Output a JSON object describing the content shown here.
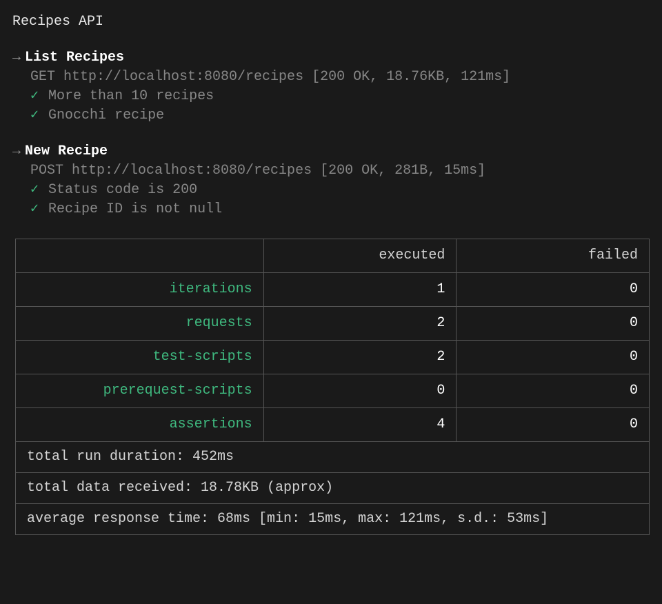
{
  "colors": {
    "background": "#1a1a1a",
    "text": "#d4d4d4",
    "bright_text": "#ffffff",
    "dim_text": "#868686",
    "green": "#3fb97f",
    "border": "#555555"
  },
  "collection": {
    "name": "Recipes API"
  },
  "requests": [
    {
      "name": "List Recipes",
      "detail": "GET http://localhost:8080/recipes [200 OK, 18.76KB, 121ms]",
      "assertions": [
        "More than 10 recipes",
        "Gnocchi recipe"
      ]
    },
    {
      "name": "New Recipe",
      "detail": "POST http://localhost:8080/recipes [200 OK, 281B, 15ms]",
      "assertions": [
        "Status code is 200",
        "Recipe ID is not null"
      ]
    }
  ],
  "summary": {
    "headers": {
      "executed": "executed",
      "failed": "failed"
    },
    "rows": [
      {
        "label": "iterations",
        "executed": "1",
        "failed": "0"
      },
      {
        "label": "requests",
        "executed": "2",
        "failed": "0"
      },
      {
        "label": "test-scripts",
        "executed": "2",
        "failed": "0"
      },
      {
        "label": "prerequest-scripts",
        "executed": "0",
        "failed": "0"
      },
      {
        "label": "assertions",
        "executed": "4",
        "failed": "0"
      }
    ],
    "footer": [
      "total run duration: 452ms",
      "total data received: 18.78KB (approx)",
      "average response time: 68ms [min: 15ms, max: 121ms, s.d.: 53ms]"
    ]
  },
  "glyphs": {
    "arrow": "→",
    "check": "✓"
  }
}
